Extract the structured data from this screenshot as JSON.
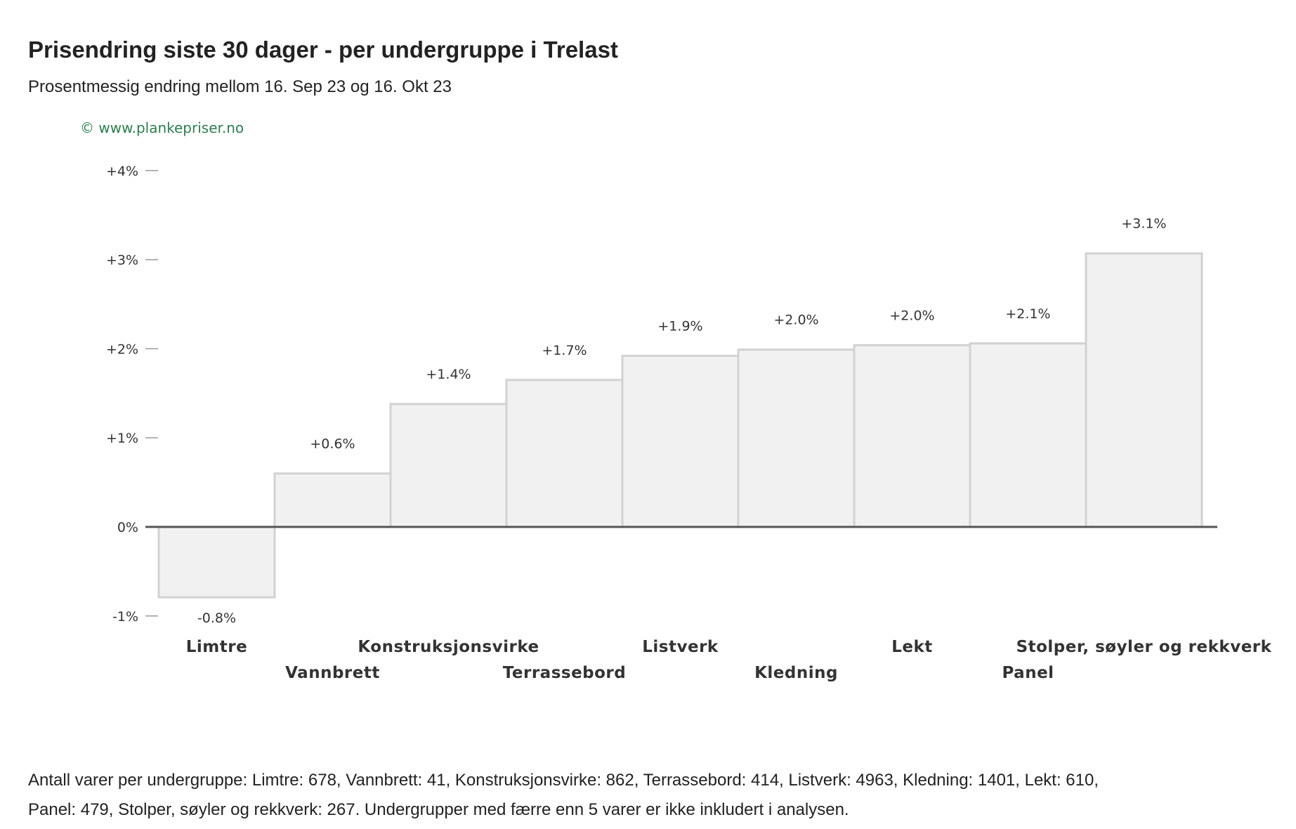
{
  "header": {
    "title": "Prisendring siste 30 dager - per undergruppe i Trelast",
    "subtitle": "Prosentmessig endring mellom 16. Sep 23 og 16. Okt 23",
    "watermark": "© www.plankepriser.no"
  },
  "footnote": "Antall varer per undergruppe: Limtre: 678, Vannbrett: 41, Konstruksjonsvirke: 862, Terrassebord: 414, Listverk: 4963, Kledning: 1401, Lekt: 610, Panel: 479, Stolper, søyler og rekkverk: 267. Undergrupper med færre enn 5 varer er ikke inkludert i analysen.",
  "chart_data": {
    "type": "bar",
    "title": "Prisendring siste 30 dager - per undergruppe i Trelast",
    "subtitle": "Prosentmessig endring mellom 16. Sep 23 og 16. Okt 23",
    "categories": [
      "Limtre",
      "Vannbrett",
      "Konstruksjonsvirke",
      "Terrassebord",
      "Listverk",
      "Kledning",
      "Lekt",
      "Panel",
      "Stolper, søyler og rekkverk"
    ],
    "values": [
      -0.79,
      0.6,
      1.38,
      1.65,
      1.92,
      1.99,
      2.04,
      2.06,
      3.07
    ],
    "value_labels": [
      "-0.8%",
      "+0.6%",
      "+1.4%",
      "+1.7%",
      "+1.9%",
      "+2.0%",
      "+2.0%",
      "+2.1%",
      "+3.1%"
    ],
    "yticks": [
      {
        "value": 4,
        "label": "+4%"
      },
      {
        "value": 3,
        "label": "+3%"
      },
      {
        "value": 2,
        "label": "+2%"
      },
      {
        "value": 1,
        "label": "+1%"
      },
      {
        "value": 0,
        "label": "0%"
      },
      {
        "value": -1,
        "label": "-1%"
      }
    ],
    "ylim": [
      -1,
      4
    ],
    "grid": false,
    "legend": "none",
    "colors": {
      "bar_fill": "#f1f1f1",
      "bar_stroke": "#d2d2d2",
      "zero_line": "#555555",
      "tick": "#999999"
    }
  }
}
